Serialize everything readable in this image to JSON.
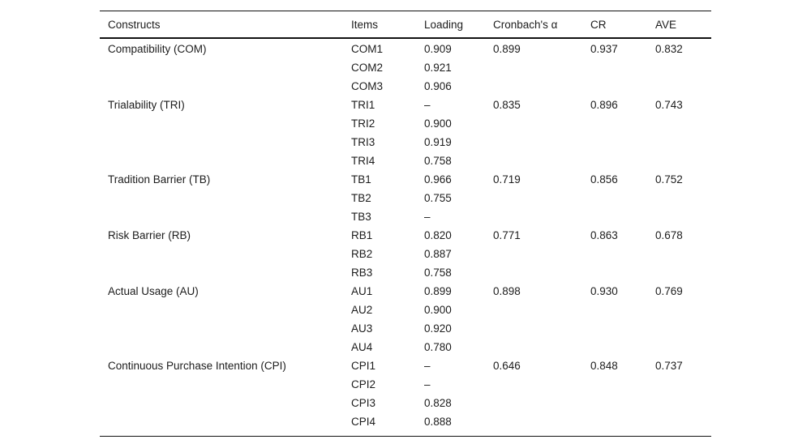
{
  "table": {
    "headers": [
      "Constructs",
      "Items",
      "Loading",
      "Cronbach's α",
      "CR",
      "AVE"
    ],
    "groups": [
      {
        "construct": "Compatibility (COM)",
        "cronbach_alpha": "0.899",
        "cr": "0.937",
        "ave": "0.832",
        "items": [
          {
            "item": "COM1",
            "loading": "0.909"
          },
          {
            "item": "COM2",
            "loading": "0.921"
          },
          {
            "item": "COM3",
            "loading": "0.906"
          }
        ]
      },
      {
        "construct": "Trialability (TRI)",
        "cronbach_alpha": "0.835",
        "cr": "0.896",
        "ave": "0.743",
        "items": [
          {
            "item": "TRI1",
            "loading": "–"
          },
          {
            "item": "TRI2",
            "loading": "0.900"
          },
          {
            "item": "TRI3",
            "loading": "0.919"
          },
          {
            "item": "TRI4",
            "loading": "0.758"
          }
        ]
      },
      {
        "construct": "Tradition Barrier (TB)",
        "cronbach_alpha": "0.719",
        "cr": "0.856",
        "ave": "0.752",
        "items": [
          {
            "item": "TB1",
            "loading": "0.966"
          },
          {
            "item": "TB2",
            "loading": "0.755"
          },
          {
            "item": "TB3",
            "loading": "–"
          }
        ]
      },
      {
        "construct": "Risk Barrier (RB)",
        "cronbach_alpha": "0.771",
        "cr": "0.863",
        "ave": "0.678",
        "items": [
          {
            "item": "RB1",
            "loading": "0.820"
          },
          {
            "item": "RB2",
            "loading": "0.887"
          },
          {
            "item": "RB3",
            "loading": "0.758"
          }
        ]
      },
      {
        "construct": "Actual Usage (AU)",
        "cronbach_alpha": "0.898",
        "cr": "0.930",
        "ave": "0.769",
        "items": [
          {
            "item": "AU1",
            "loading": "0.899"
          },
          {
            "item": "AU2",
            "loading": "0.900"
          },
          {
            "item": "AU3",
            "loading": "0.920"
          },
          {
            "item": "AU4",
            "loading": "0.780"
          }
        ]
      },
      {
        "construct": "Continuous Purchase Intention (CPI)",
        "cronbach_alpha": "0.646",
        "cr": "0.848",
        "ave": "0.737",
        "items": [
          {
            "item": "CPI1",
            "loading": "–"
          },
          {
            "item": "CPI2",
            "loading": "–"
          },
          {
            "item": "CPI3",
            "loading": "0.828"
          },
          {
            "item": "CPI4",
            "loading": "0.888"
          }
        ]
      }
    ]
  }
}
